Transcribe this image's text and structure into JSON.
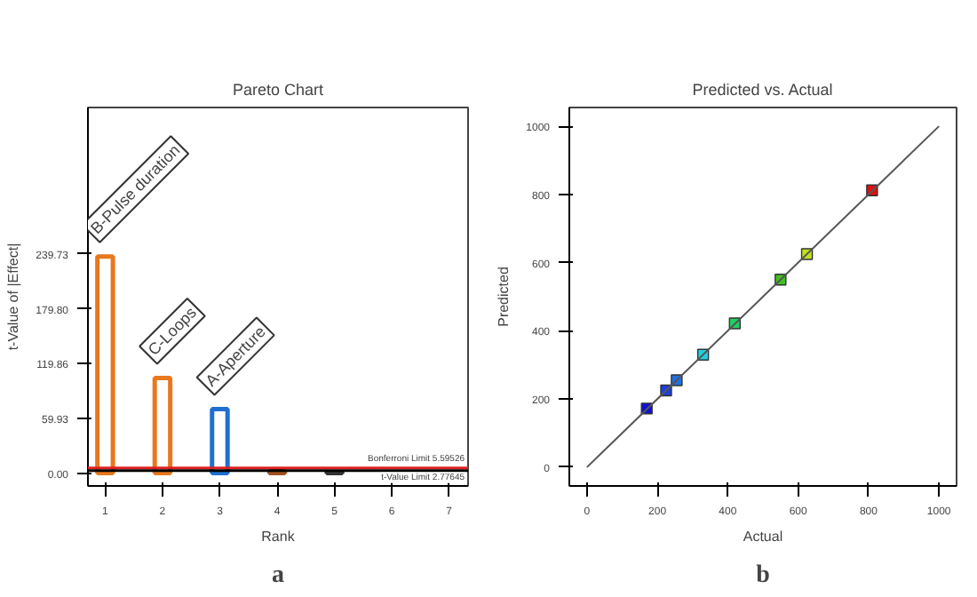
{
  "chart_data": [
    {
      "type": "bar",
      "title": "Pareto Chart",
      "xlabel": "Rank",
      "ylabel": "t-Value of |Effect|",
      "categories": [
        "1",
        "2",
        "3",
        "4",
        "5",
        "6",
        "7"
      ],
      "series": [
        {
          "values": [
            237,
            104,
            70,
            2,
            1,
            null,
            null
          ],
          "colors": [
            "#e8781e",
            "#e8781e",
            "#1e6fd0",
            "#a0521e",
            "#333333",
            "#333333",
            "#555555"
          ]
        }
      ],
      "ylim": [
        -14,
        400
      ],
      "yticks": [
        {
          "value": 0,
          "label": "0.00"
        },
        59.93,
        119.86,
        {
          "value": 179.8,
          "label": "179.80"
        },
        239.73
      ],
      "grid": false,
      "ref_lines": [
        {
          "axis": "y",
          "value": 5.59526,
          "label": "Bonferroni Limit 5.59526",
          "color": "#e02020"
        },
        {
          "axis": "y",
          "value": 2.77645,
          "label": "t-Value Limit 2.77645",
          "color": "#000000"
        }
      ],
      "annotations": [
        {
          "text": "B-Pulse duration",
          "x": "1",
          "y": 237
        },
        {
          "text": "C-Loops",
          "x": "2",
          "y": 104
        },
        {
          "text": "A-Aperture",
          "x": "3",
          "y": 70
        },
        "a"
      ]
    },
    {
      "type": "scatter",
      "title": "Predicted vs. Actual",
      "xlabel": "Actual",
      "ylabel": "Predicted",
      "x": [
        170,
        225,
        255,
        330,
        420,
        550,
        625,
        810
      ],
      "marker": "square",
      "series": [
        {
          "values": [
            172,
            225,
            255,
            330,
            422,
            550,
            625,
            812
          ],
          "colors": [
            "#1010d0",
            "#1a40e0",
            "#2070e0",
            "#20d0e0",
            "#20d060",
            "#40c020",
            "#c0e020",
            "#e01010"
          ]
        },
        {
          "type": "line",
          "x": [
            0,
            1000
          ],
          "values": [
            0,
            1000
          ],
          "color": "#555555",
          "marker": "none"
        }
      ],
      "xlim": [
        -50,
        1050
      ],
      "ylim": [
        -55,
        1055
      ],
      "xticks": [
        0,
        200,
        400,
        600,
        800,
        1000
      ],
      "yticks": [
        0,
        200,
        400,
        600,
        800,
        1000
      ],
      "grid": false,
      "annotations": [
        "b"
      ]
    }
  ]
}
